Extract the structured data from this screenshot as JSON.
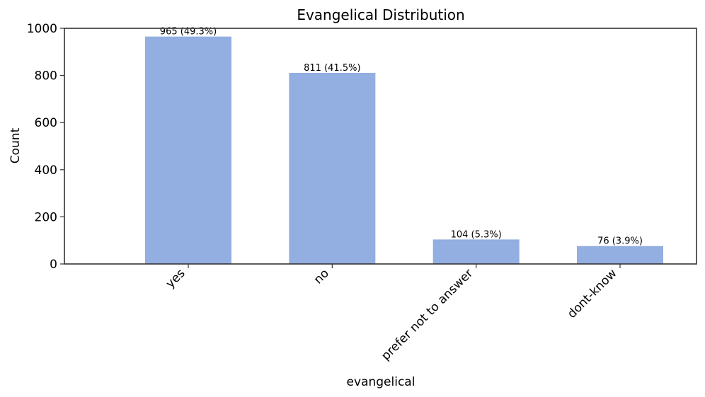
{
  "chart_data": {
    "type": "bar",
    "title": "Evangelical Distribution",
    "xlabel": "evangelical",
    "ylabel": "Count",
    "categories": [
      "yes",
      "no",
      "prefer not to answer",
      "dont-know"
    ],
    "values": [
      965,
      811,
      104,
      76
    ],
    "data_labels": [
      "965 (49.3%)",
      "811 (41.5%)",
      "104 (5.3%)",
      "76 (3.9%)"
    ],
    "ylim": [
      0,
      1000
    ],
    "yticks": [
      0,
      200,
      400,
      600,
      800,
      1000
    ],
    "grid": false,
    "legend": "none",
    "bar_color": "#93aee0",
    "axis_color": "#333333"
  }
}
